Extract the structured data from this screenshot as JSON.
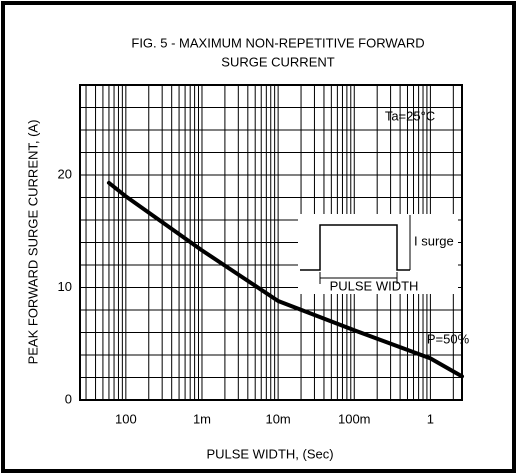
{
  "chart_data": {
    "type": "line",
    "title": [
      "FIG. 5 - MAXIMUM NON-REPETITIVE FORWARD",
      "SURGE CURRENT"
    ],
    "x_label": "PULSE WIDTH, (Sec)",
    "y_label": "PEAK FORWARD SURGE CURRENT, (A)",
    "x": [
      6e-05,
      0.0001,
      0.001,
      0.01,
      0.1,
      1,
      2.6
    ],
    "series": [
      {
        "name": "P=50%",
        "color": "#000000",
        "values": [
          19.3,
          18.1,
          13.3,
          8.8,
          6.2,
          3.7,
          2.1
        ]
      }
    ],
    "xlim": [
      2.5e-05,
      2.6
    ],
    "ylim": [
      0,
      28
    ],
    "log_x": true,
    "grid": true,
    "xticks": [
      {
        "value": 0.0001,
        "label": "100"
      },
      {
        "value": 0.001,
        "label": "1m"
      },
      {
        "value": 0.01,
        "label": "10m"
      },
      {
        "value": 0.1,
        "label": "100m"
      },
      1
    ],
    "yticks": [
      0,
      10,
      20
    ],
    "annotations": [
      "Ta=25°C",
      "I surge",
      "PULSE WIDTH"
    ]
  }
}
